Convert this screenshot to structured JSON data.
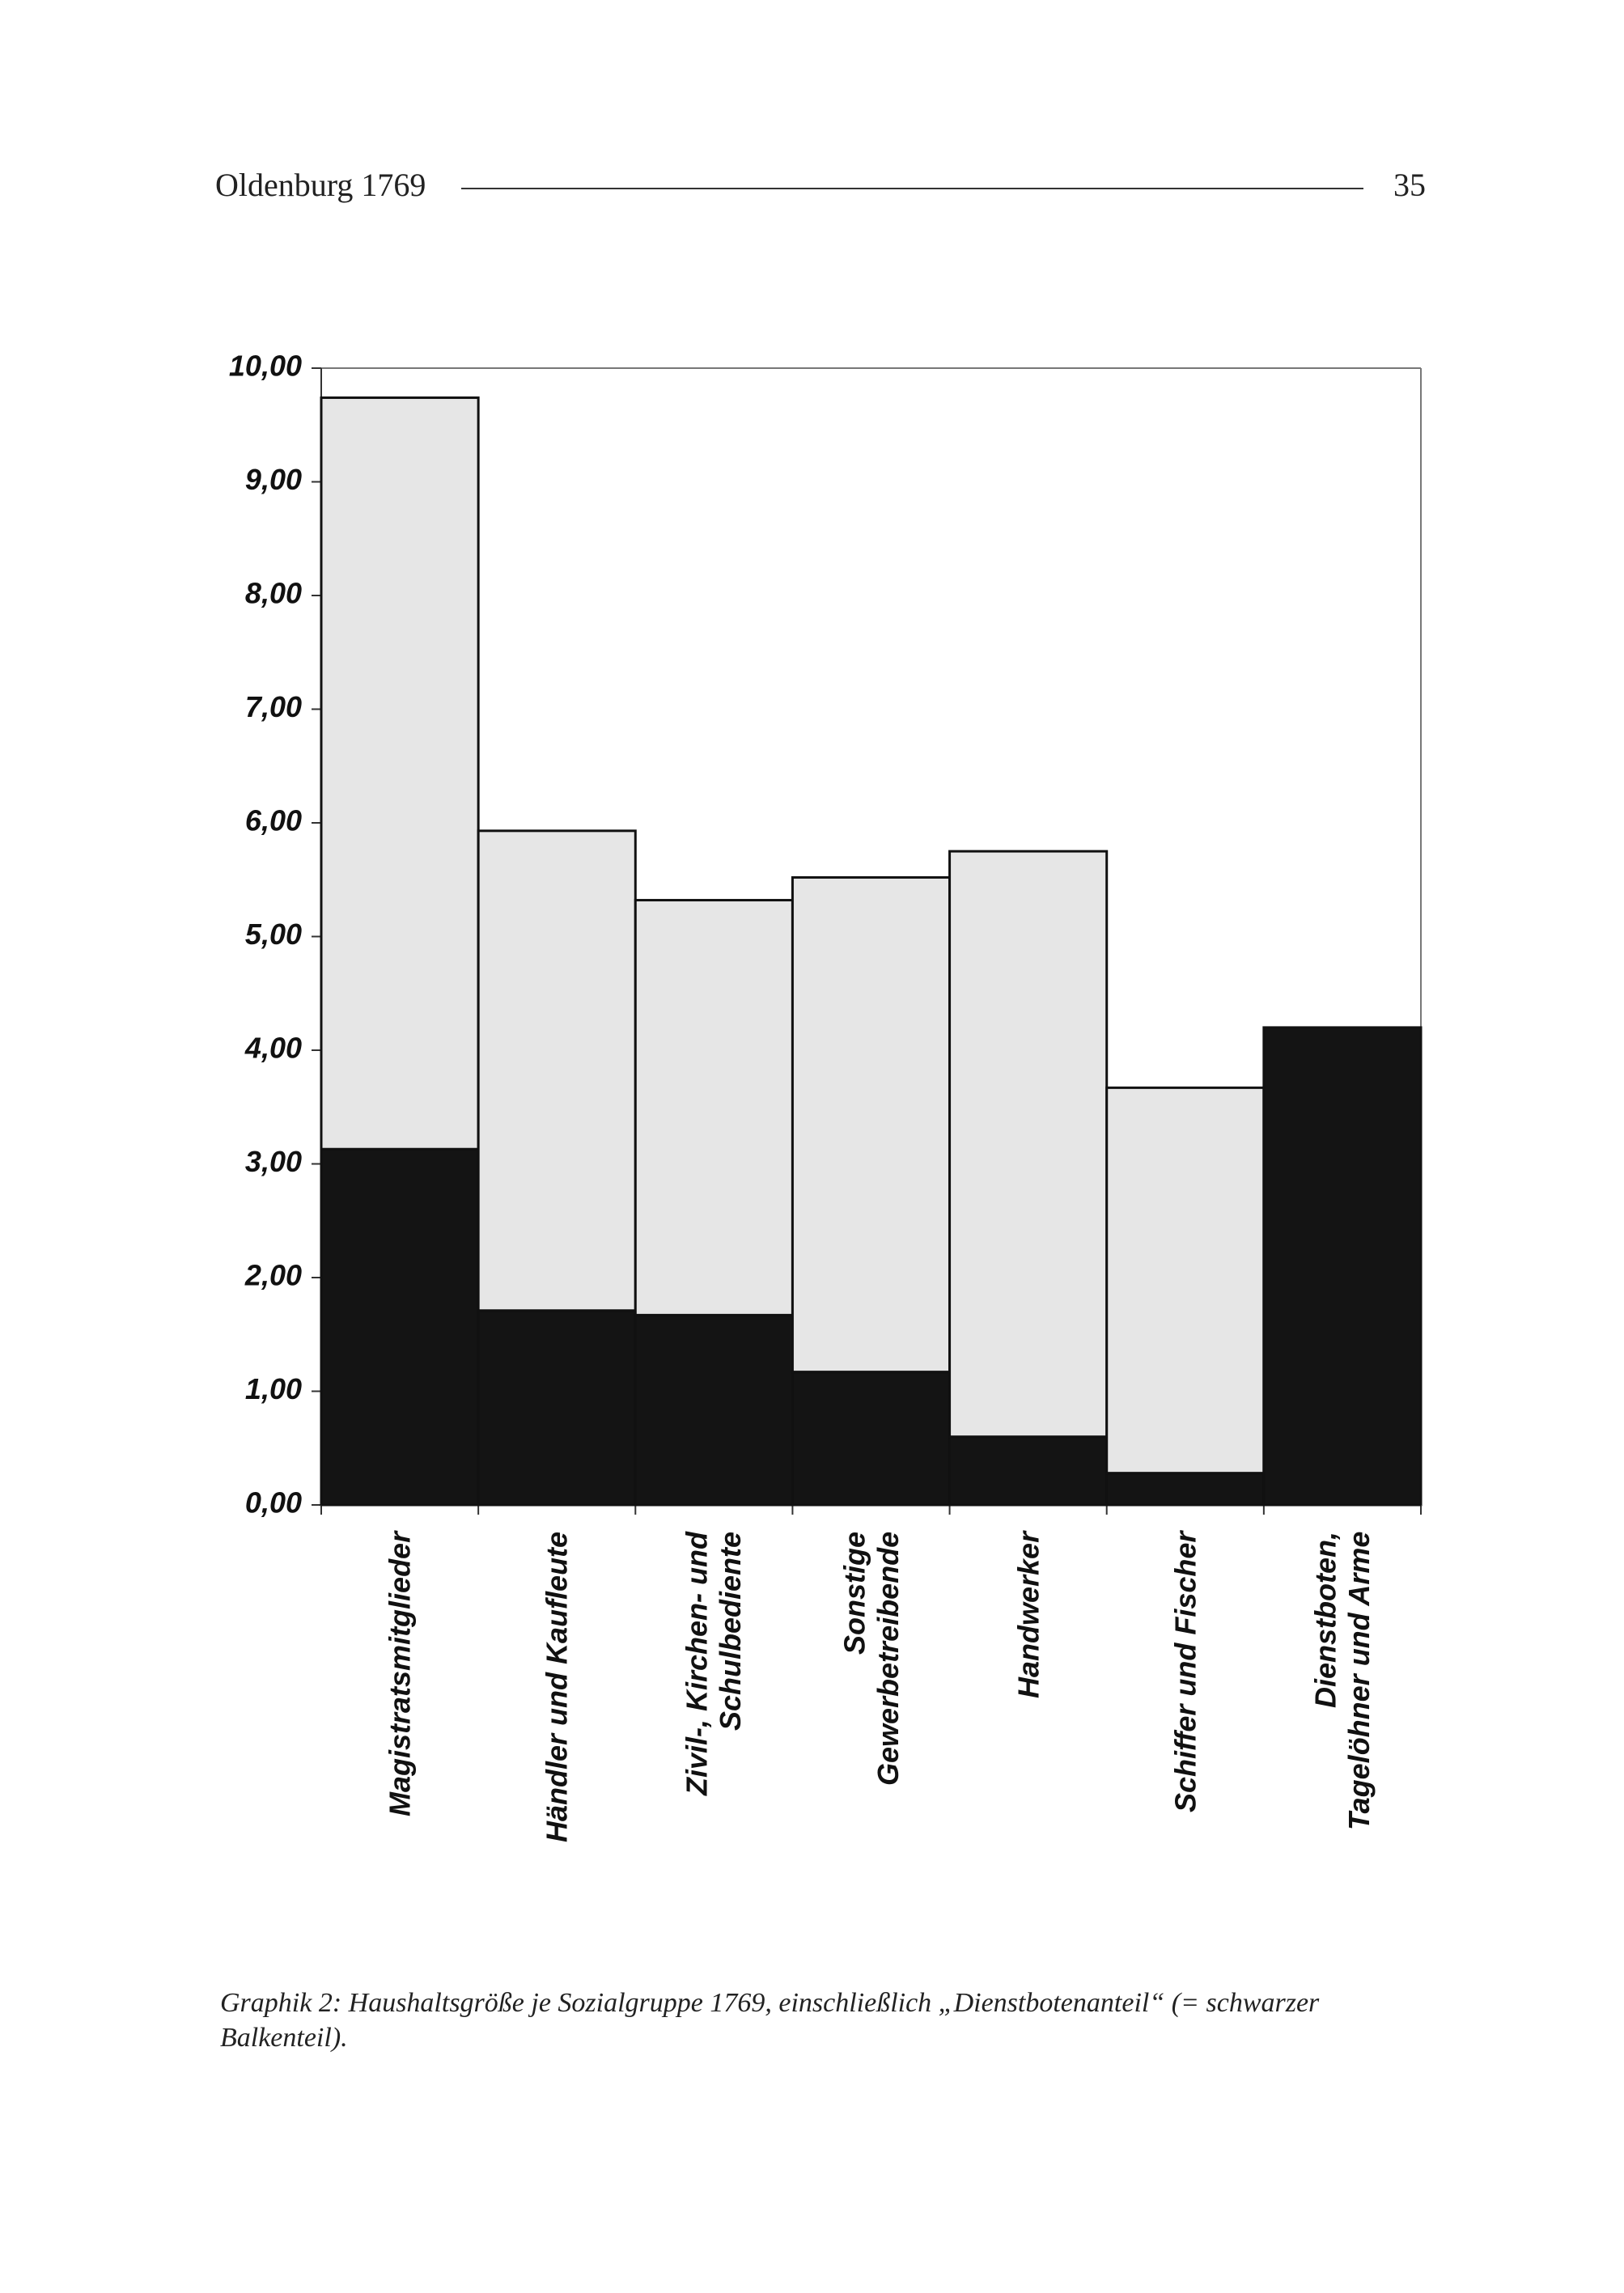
{
  "header": {
    "title": "Oldenburg 1769",
    "page_number": "35"
  },
  "chart_data": {
    "type": "stacked_bar",
    "categories": [
      "Magistratsmitglieder",
      "Händler und Kaufleute",
      "Zivil-, Kirchen- und\nSchulbediente",
      "Sonstige\nGewerbetreibende",
      "Handwerker",
      "Schiffer und Fischer",
      "Dienstboten,\nTagelöhner und Arme"
    ],
    "series": [
      {
        "color": "#141414",
        "values": [
          3.13,
          1.71,
          1.67,
          1.17,
          0.6,
          0.28,
          4.2
        ]
      },
      {
        "color": "#e6e6e6",
        "values": [
          6.61,
          4.22,
          3.65,
          4.35,
          5.15,
          3.39,
          0
        ]
      }
    ],
    "ylim": [
      0,
      10
    ],
    "yticks": [
      {
        "value": 0,
        "label": "0,00"
      },
      {
        "value": 1,
        "label": "1,00"
      },
      {
        "value": 2,
        "label": "2,00"
      },
      {
        "value": 3,
        "label": "3,00"
      },
      {
        "value": 4,
        "label": "4,00"
      },
      {
        "value": 5,
        "label": "5,00"
      },
      {
        "value": 6,
        "label": "6,00"
      },
      {
        "value": 7,
        "label": "7,00"
      },
      {
        "value": 8,
        "label": "8,00"
      },
      {
        "value": 9,
        "label": "9,00"
      },
      {
        "value": 10,
        "label": "10,00"
      }
    ]
  },
  "caption": "Graphik 2: Haushaltsgröße je Sozialgruppe 1769, einschließlich „Dienstbotenanteil“ (= schwarzer Balkenteil)."
}
